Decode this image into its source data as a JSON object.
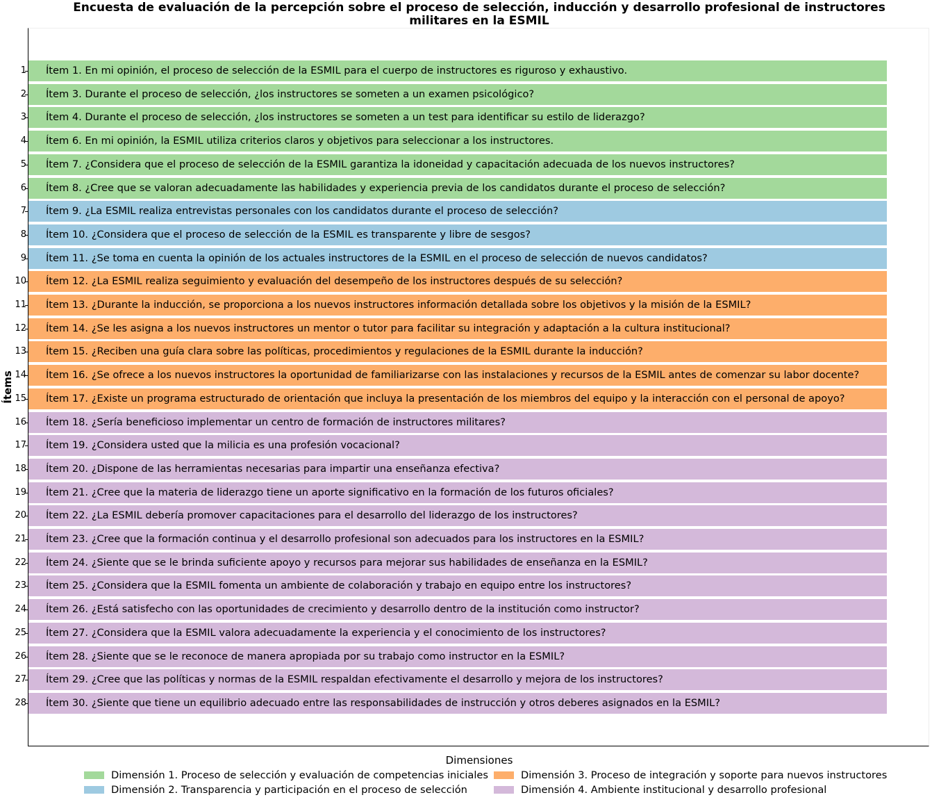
{
  "chart_data": {
    "type": "bar",
    "title_lines": [
      "Encuesta de evaluación de la percepción sobre el proceso de selección, inducción y desarrollo profesional de instructores",
      "militares en la ESMIL"
    ],
    "ylabel": "Ítems",
    "legend_title": "Dimensiones",
    "dimensions": [
      {
        "name": "Dimensión 1. Proceso de selección y evaluación de competencias iniciales",
        "color": "#a3d99b"
      },
      {
        "name": "Dimensión 2. Transparencia y participación en el proceso de selección",
        "color": "#9ecae1"
      },
      {
        "name": "Dimensión 3. Proceso de integración y soporte para nuevos instructores",
        "color": "#fdae6b"
      },
      {
        "name": "Dimensión 4. Ambiente institucional y desarrollo profesional",
        "color": "#d4b9da"
      }
    ],
    "items": [
      {
        "tick": "1",
        "dimension": 0,
        "label": "Ítem 1. En mi opinión, el proceso de selección de la ESMIL para el cuerpo de instructores es riguroso y exhaustivo."
      },
      {
        "tick": "2",
        "dimension": 0,
        "label": "Ítem 3. Durante el proceso de selección, ¿los instructores se someten a un examen psicológico?"
      },
      {
        "tick": "3",
        "dimension": 0,
        "label": "Ítem 4. Durante el proceso de selección, ¿los instructores se someten a un test para identificar su estilo de liderazgo?"
      },
      {
        "tick": "4",
        "dimension": 0,
        "label": "Ítem 6. En mi opinión, la ESMIL utiliza criterios claros y objetivos para seleccionar a los instructores."
      },
      {
        "tick": "5",
        "dimension": 0,
        "label": "Ítem 7. ¿Considera que el proceso de selección de la ESMIL garantiza la idoneidad y capacitación adecuada de los nuevos instructores?"
      },
      {
        "tick": "6",
        "dimension": 0,
        "label": "Ítem 8. ¿Cree que se valoran adecuadamente las habilidades y experiencia previa de los candidatos durante el proceso de selección?"
      },
      {
        "tick": "7",
        "dimension": 1,
        "label": "Ítem 9. ¿La ESMIL realiza entrevistas personales con los candidatos durante el proceso de selección?"
      },
      {
        "tick": "8",
        "dimension": 1,
        "label": "Ítem 10. ¿Considera que el proceso de selección de la ESMIL es transparente y libre de sesgos?"
      },
      {
        "tick": "9",
        "dimension": 1,
        "label": "Ítem 11. ¿Se toma en cuenta la opinión de los actuales instructores de la ESMIL en el proceso de selección de nuevos candidatos?"
      },
      {
        "tick": "10",
        "dimension": 2,
        "label": "Ítem 12. ¿La ESMIL realiza seguimiento y evaluación del desempeño de los instructores después de su selección?"
      },
      {
        "tick": "11",
        "dimension": 2,
        "label": "Ítem 13. ¿Durante la inducción, se proporciona a los nuevos instructores información detallada sobre los objetivos y la misión de la ESMIL?"
      },
      {
        "tick": "12",
        "dimension": 2,
        "label": "Ítem 14. ¿Se les asigna a los nuevos instructores un mentor o tutor para facilitar su integración y adaptación a la cultura institucional?"
      },
      {
        "tick": "13",
        "dimension": 2,
        "label": "Ítem 15. ¿Reciben una guía clara sobre las políticas, procedimientos y regulaciones de la ESMIL durante la inducción?"
      },
      {
        "tick": "14",
        "dimension": 2,
        "label": "Ítem 16. ¿Se ofrece a los nuevos instructores la oportunidad de familiarizarse con las instalaciones y recursos de la ESMIL antes de comenzar su labor docente?"
      },
      {
        "tick": "15",
        "dimension": 2,
        "label": "Ítem 17. ¿Existe un programa estructurado de orientación que incluya la presentación de los miembros del equipo y la interacción con el personal de apoyo?"
      },
      {
        "tick": "16",
        "dimension": 3,
        "label": "Ítem 18. ¿Sería beneficioso implementar un centro de formación de instructores militares?"
      },
      {
        "tick": "17",
        "dimension": 3,
        "label": "Ítem 19. ¿Considera usted que la milicia es una profesión vocacional?"
      },
      {
        "tick": "18",
        "dimension": 3,
        "label": "Ítem 20. ¿Dispone de las herramientas necesarias para impartir una enseñanza efectiva?"
      },
      {
        "tick": "19",
        "dimension": 3,
        "label": "Ítem 21. ¿Cree que la materia de liderazgo tiene un aporte significativo en la formación de los futuros oficiales?"
      },
      {
        "tick": "20",
        "dimension": 3,
        "label": "Ítem 22. ¿La ESMIL debería promover capacitaciones para el desarrollo del liderazgo de los instructores?"
      },
      {
        "tick": "21",
        "dimension": 3,
        "label": "Ítem 23. ¿Cree que la formación continua y el desarrollo profesional son adecuados para los instructores en la ESMIL?"
      },
      {
        "tick": "22",
        "dimension": 3,
        "label": "Ítem 24. ¿Siente que se le brinda suficiente apoyo y recursos para mejorar sus habilidades de enseñanza en la ESMIL?"
      },
      {
        "tick": "23",
        "dimension": 3,
        "label": "Ítem 25. ¿Considera que la ESMIL fomenta un ambiente de colaboración y trabajo en equipo entre los instructores?"
      },
      {
        "tick": "24",
        "dimension": 3,
        "label": "Ítem 26. ¿Está satisfecho con las oportunidades de crecimiento y desarrollo dentro de la institución como instructor?"
      },
      {
        "tick": "25",
        "dimension": 3,
        "label": "Ítem 27. ¿Considera que la ESMIL valora adecuadamente la experiencia y el conocimiento de los instructores?"
      },
      {
        "tick": "26",
        "dimension": 3,
        "label": "Ítem 28. ¿Siente que se le reconoce de manera apropiada por su trabajo como instructor en la ESMIL?"
      },
      {
        "tick": "27",
        "dimension": 3,
        "label": "Ítem 29. ¿Cree que las políticas y normas de la ESMIL respaldan efectivamente el desarrollo y mejora de los instructores?"
      },
      {
        "tick": "28",
        "dimension": 3,
        "label": "Ítem 30. ¿Siente que tiene un equilibrio adecuado entre las responsabilidades de instrucción y otros deberes asignados en la ESMIL?"
      }
    ]
  }
}
